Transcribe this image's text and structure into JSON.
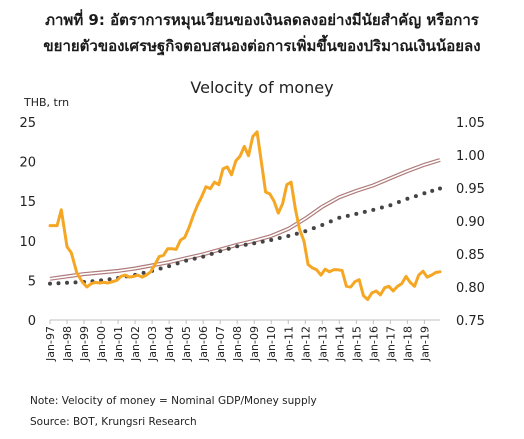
{
  "header": {
    "line1": "ภาพที่ 9: อัตราการหมุนเวียนของเงินลดลงอย่างมีนัยสำคัญ หรือการ",
    "line2": "ขยายตัวของเศรษฐกิจตอบสนองต่อการเพิ่มขึ้นของปริมาณเงินน้อยลง"
  },
  "footer": {
    "note": "Note: Velocity of money = Nominal GDP/Money supply",
    "source": "Source: BOT, Krungsri Research"
  },
  "chart_data": {
    "type": "line",
    "title": "Velocity of money",
    "ylabel": "THB, trn",
    "ylim": [
      0,
      25
    ],
    "y2lim": [
      0.75,
      1.05
    ],
    "yticks": [
      "0",
      "5",
      "10",
      "15",
      "20",
      "25"
    ],
    "y2ticks": [
      "0.75",
      "0.80",
      "0.85",
      "0.90",
      "0.95",
      "1.00",
      "1.05"
    ],
    "grid": false,
    "legend": "none",
    "xlim": [
      "1997-01",
      "2019-12"
    ],
    "xticks": [
      "Jan-97",
      "Jan-98",
      "Jan-99",
      "Jan-00",
      "Jan-01",
      "Jan-02",
      "Jan-03",
      "Jan-04",
      "Jan-05",
      "Jan-06",
      "Jan-07",
      "Jan-08",
      "Jan-09",
      "Jan-10",
      "Jan-11",
      "Jan-12",
      "Jan-13",
      "Jan-14",
      "Jan-15",
      "Jan-16",
      "Jan-17",
      "Jan-18",
      "Jan-19"
    ],
    "colors": {
      "orange": "#f5a623",
      "brown": "#b07b7b",
      "dots": "#444444",
      "axis": "#bfbfbf"
    },
    "series": [
      {
        "axis": "right",
        "style": "line",
        "color": "#f5a623",
        "x": [
          "1997-01",
          "1997-06",
          "1997-09",
          "1998-01",
          "1998-04",
          "1998-08",
          "1998-12",
          "1999-03",
          "1999-06",
          "1999-09",
          "1999-12",
          "2000-03",
          "2000-06",
          "2000-09",
          "2000-12",
          "2001-03",
          "2001-06",
          "2001-09",
          "2001-12",
          "2002-03",
          "2002-06",
          "2002-09",
          "2002-12",
          "2003-03",
          "2003-06",
          "2003-09",
          "2003-12",
          "2004-03",
          "2004-06",
          "2004-09",
          "2004-12",
          "2005-03",
          "2005-06",
          "2005-09",
          "2005-12",
          "2006-03",
          "2006-06",
          "2006-09",
          "2006-12",
          "2007-03",
          "2007-06",
          "2007-09",
          "2007-12",
          "2008-03",
          "2008-06",
          "2008-09",
          "2008-12",
          "2009-03",
          "2009-06",
          "2009-09",
          "2009-12",
          "2010-03",
          "2010-06",
          "2010-09",
          "2010-12",
          "2011-03",
          "2011-06",
          "2011-09",
          "2011-12",
          "2012-03",
          "2012-06",
          "2012-09",
          "2012-12",
          "2013-03",
          "2013-06",
          "2013-09",
          "2013-12",
          "2014-03",
          "2014-06",
          "2014-09",
          "2014-12",
          "2015-03",
          "2015-06",
          "2015-09",
          "2015-12",
          "2016-03",
          "2016-06",
          "2016-09",
          "2016-12",
          "2017-03",
          "2017-06",
          "2017-09",
          "2017-12",
          "2018-03",
          "2018-06",
          "2018-09",
          "2018-12",
          "2019-03",
          "2019-06",
          "2019-09",
          "2019-12"
        ],
        "y": [
          0.893,
          0.893,
          0.917,
          0.861,
          0.852,
          0.821,
          0.807,
          0.8,
          0.805,
          0.807,
          0.806,
          0.807,
          0.806,
          0.808,
          0.81,
          0.816,
          0.818,
          0.815,
          0.816,
          0.818,
          0.815,
          0.818,
          0.823,
          0.834,
          0.846,
          0.848,
          0.858,
          0.858,
          0.857,
          0.871,
          0.875,
          0.89,
          0.908,
          0.924,
          0.937,
          0.952,
          0.949,
          0.959,
          0.955,
          0.979,
          0.982,
          0.97,
          0.991,
          0.998,
          1.013,
          0.999,
          1.028,
          1.035,
          0.99,
          0.944,
          0.941,
          0.93,
          0.912,
          0.926,
          0.955,
          0.959,
          0.919,
          0.887,
          0.87,
          0.834,
          0.829,
          0.826,
          0.818,
          0.827,
          0.823,
          0.826,
          0.826,
          0.825,
          0.801,
          0.8,
          0.808,
          0.811,
          0.787,
          0.781,
          0.791,
          0.794,
          0.788,
          0.799,
          0.801,
          0.794,
          0.801,
          0.805,
          0.816,
          0.807,
          0.801,
          0.818,
          0.824,
          0.815,
          0.818,
          0.822,
          0.823
        ]
      },
      {
        "axis": "left",
        "style": "double-line",
        "color": "#b07b7b",
        "x": [
          "1997-01",
          "1998-01",
          "1999-01",
          "2000-01",
          "2001-01",
          "2002-01",
          "2003-01",
          "2004-01",
          "2005-01",
          "2006-01",
          "2007-01",
          "2008-01",
          "2009-01",
          "2010-01",
          "2011-01",
          "2012-01",
          "2013-01",
          "2014-01",
          "2015-01",
          "2016-01",
          "2017-01",
          "2018-01",
          "2019-01",
          "2019-12"
        ],
        "y": [
          5.2,
          5.5,
          5.8,
          6.0,
          6.2,
          6.5,
          6.9,
          7.3,
          7.8,
          8.3,
          8.9,
          9.5,
          10.0,
          10.6,
          11.5,
          12.8,
          14.3,
          15.5,
          16.3,
          17.0,
          17.9,
          18.8,
          19.6,
          20.2
        ]
      },
      {
        "axis": "left",
        "style": "dots",
        "color": "#444444",
        "x": [
          "1997-01",
          "1998-01",
          "1999-01",
          "2000-01",
          "2001-01",
          "2002-01",
          "2003-01",
          "2004-01",
          "2005-01",
          "2006-01",
          "2007-01",
          "2008-01",
          "2009-01",
          "2010-01",
          "2011-01",
          "2012-01",
          "2013-01",
          "2014-01",
          "2015-01",
          "2016-01",
          "2017-01",
          "2018-01",
          "2019-01",
          "2019-12"
        ],
        "y": [
          4.6,
          4.7,
          4.8,
          5.0,
          5.3,
          5.7,
          6.2,
          6.8,
          7.5,
          8.0,
          8.7,
          9.3,
          9.7,
          10.1,
          10.6,
          11.2,
          12.0,
          12.9,
          13.4,
          13.9,
          14.5,
          15.3,
          16.0,
          16.6
        ]
      }
    ]
  }
}
